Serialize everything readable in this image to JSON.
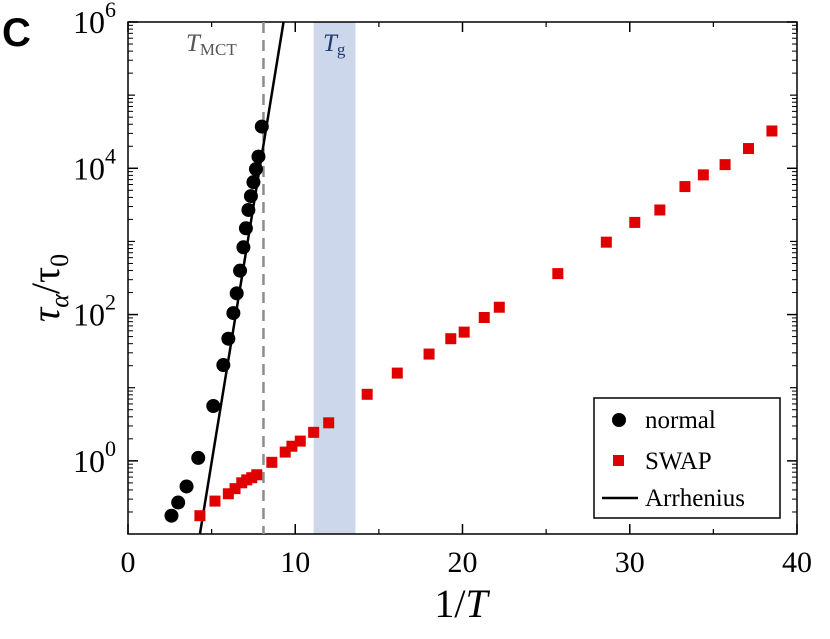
{
  "panel_label": "C",
  "colors": {
    "normal": "#000000",
    "swap": "#e00000",
    "arrhenius": "#000000",
    "tmct_line": "#8c8c8c",
    "tmct_text": "#555555",
    "tg_band": "#ccd7ec",
    "tg_text": "#1f3a6e"
  },
  "chart_data": {
    "type": "scatter",
    "x_axis": {
      "label": "1/T",
      "range": [
        0,
        40
      ],
      "ticks": [
        0,
        10,
        20,
        30,
        40
      ],
      "tick_labels": [
        "0",
        "10",
        "20",
        "30",
        "40"
      ]
    },
    "y_axis": {
      "label": "τα/τ0",
      "scale": "log10",
      "range_log10": [
        -1,
        6
      ],
      "ticks_log10": [
        0,
        2,
        4,
        6
      ],
      "tick_labels": [
        "10^0",
        "10^2",
        "10^4",
        "10^6"
      ]
    },
    "grid": false,
    "legend_position": "bottom-right",
    "series": [
      {
        "name": "normal",
        "marker": "circle",
        "color": "#000000",
        "x": [
          2.6,
          3.0,
          3.5,
          4.2,
          5.1,
          5.7,
          6.0,
          6.3,
          6.5,
          6.7,
          6.9,
          7.05,
          7.2,
          7.35,
          7.5,
          7.65,
          7.8,
          8.0
        ],
        "log10_y": [
          -0.75,
          -0.57,
          -0.35,
          0.04,
          0.75,
          1.31,
          1.67,
          2.02,
          2.29,
          2.6,
          2.92,
          3.18,
          3.43,
          3.62,
          3.81,
          3.99,
          4.16,
          4.57
        ]
      },
      {
        "name": "SWAP",
        "marker": "square",
        "color": "#e00000",
        "x": [
          4.3,
          5.2,
          6.0,
          6.4,
          6.8,
          7.1,
          7.4,
          7.7,
          8.6,
          9.4,
          9.8,
          10.3,
          11.1,
          12.0,
          14.3,
          16.1,
          18.0,
          19.3,
          20.1,
          21.3,
          22.2,
          25.7,
          28.6,
          30.3,
          31.8,
          33.3,
          34.4,
          35.7,
          37.1,
          38.5
        ],
        "log10_y": [
          -0.75,
          -0.55,
          -0.45,
          -0.38,
          -0.3,
          -0.26,
          -0.23,
          -0.19,
          -0.02,
          0.12,
          0.2,
          0.27,
          0.39,
          0.52,
          0.91,
          1.2,
          1.46,
          1.67,
          1.76,
          1.96,
          2.1,
          2.56,
          2.99,
          3.26,
          3.43,
          3.75,
          3.91,
          4.05,
          4.27,
          4.51
        ]
      },
      {
        "name": "Arrhenius",
        "marker": "line",
        "color": "#000000",
        "x": [
          4.3,
          9.3
        ],
        "log10_y": [
          -1.0,
          6.0
        ]
      }
    ],
    "annotations": [
      {
        "type": "vline",
        "label": "TMCT",
        "x": 8.1,
        "style": "dashed"
      },
      {
        "type": "vband",
        "label": "Tg",
        "x_range": [
          11.1,
          13.6
        ]
      }
    ]
  }
}
